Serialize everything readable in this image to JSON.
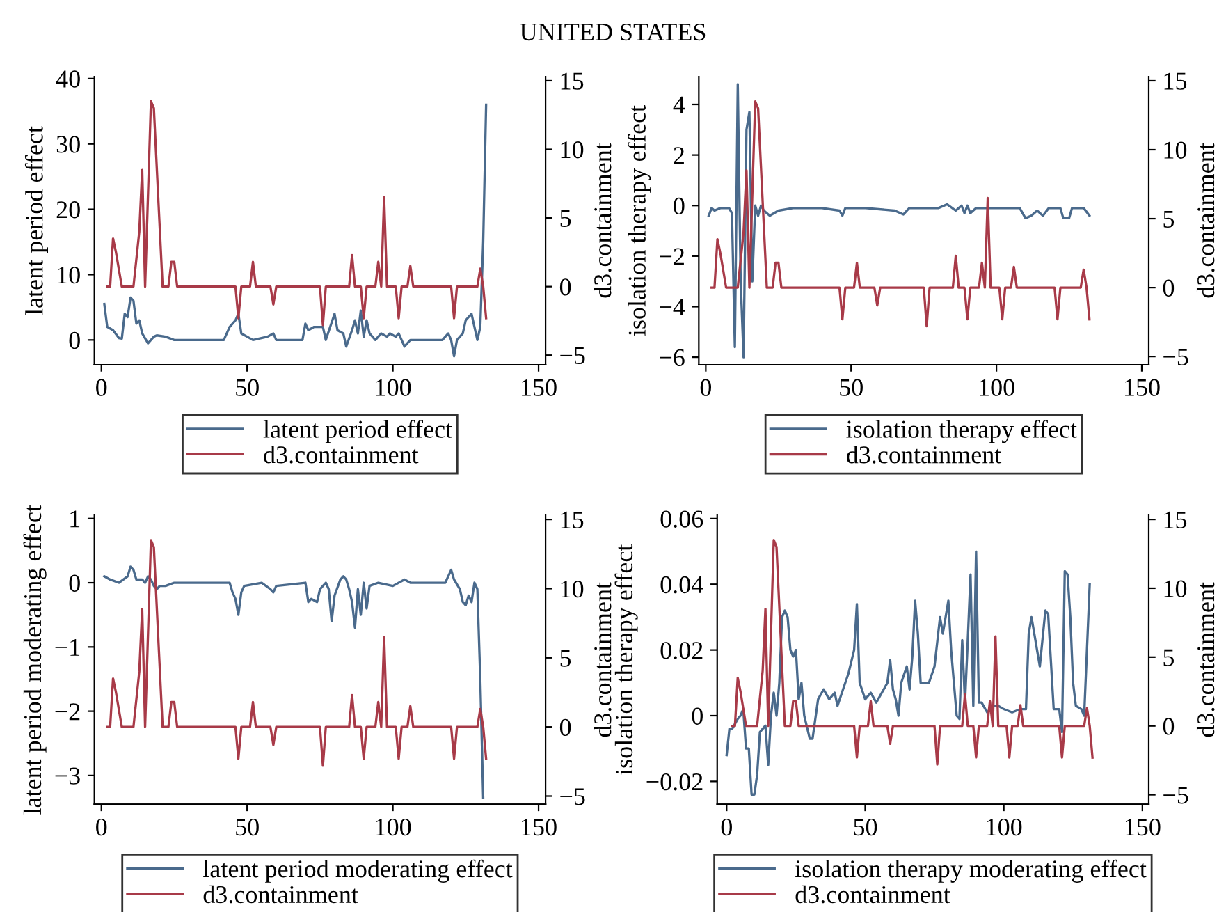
{
  "chart_data": [
    {
      "type": "line",
      "title": "UNITED STATES",
      "ylabel": "latent period effect",
      "y2label": "d3.containment",
      "xlim": [
        -2.4,
        152.4
      ],
      "xticks": [
        0,
        50,
        100,
        150
      ],
      "ylim": [
        -3.8,
        40.3
      ],
      "yticks": [
        0,
        10,
        20,
        30,
        40
      ],
      "y2lim": [
        -5.7,
        15.3
      ],
      "y2ticks": [
        -5,
        0,
        5,
        10,
        15
      ],
      "grid": false,
      "legend": "bottom",
      "series": [
        {
          "name": "latent period effect",
          "color": "#4a6a8c",
          "x": [
            1,
            2,
            4,
            6,
            7,
            8,
            9,
            10,
            11,
            12,
            13,
            14,
            16,
            18,
            19,
            22,
            25,
            42,
            44,
            46,
            47,
            48,
            50,
            52,
            57,
            59,
            60,
            69,
            70,
            71,
            73,
            76,
            77,
            80,
            81,
            83,
            84,
            86,
            87,
            88,
            89,
            90,
            91,
            92,
            94,
            96,
            98,
            99,
            101,
            102,
            104,
            106,
            117,
            119,
            120,
            121,
            122,
            124,
            125,
            126,
            127,
            128,
            129,
            130,
            131,
            132
          ],
          "values": [
            5.5,
            2,
            1.5,
            0.3,
            0.2,
            4,
            3.5,
            6.5,
            6,
            2.5,
            3,
            1,
            -0.5,
            0.5,
            0.7,
            0.5,
            0,
            0,
            2,
            3,
            4,
            1,
            0.5,
            0,
            0.5,
            1,
            0,
            0,
            2.5,
            1.5,
            2,
            2,
            0,
            4,
            1.5,
            1,
            -1,
            1.5,
            3,
            1,
            4.5,
            0.5,
            3,
            1,
            0,
            1,
            0.5,
            1,
            0.5,
            1,
            -1,
            0,
            0,
            1,
            0,
            -2.5,
            0,
            1,
            3,
            3.5,
            4,
            2,
            0,
            2,
            15,
            36
          ]
        },
        {
          "name": "d3.containment",
          "color": "#a83a48",
          "axis": "y2",
          "x": [
            2,
            3,
            4,
            5,
            7,
            11,
            13,
            14,
            15,
            17,
            18,
            21,
            23,
            24,
            25,
            26,
            46,
            47,
            48,
            51,
            52,
            53,
            58,
            59,
            60,
            75,
            76,
            77,
            85,
            86,
            87,
            89,
            90,
            91,
            94,
            95,
            96,
            97,
            98,
            101,
            102,
            103,
            105,
            106,
            107,
            120,
            121,
            122,
            129,
            130,
            131,
            132
          ],
          "values": [
            0,
            0,
            3.5,
            2.5,
            0,
            0,
            4,
            8.5,
            0,
            13.5,
            13,
            0,
            0,
            1.8,
            1.8,
            0,
            0,
            -2.3,
            0,
            0,
            1.8,
            0,
            0,
            -1.3,
            0,
            0,
            -2.8,
            0,
            0,
            2.3,
            0,
            0,
            -2.3,
            0,
            0,
            1.8,
            0,
            6.5,
            0,
            0,
            -2.3,
            0,
            0,
            1.5,
            0,
            0,
            -2.3,
            0,
            0,
            1.3,
            0,
            -2.3
          ]
        }
      ]
    },
    {
      "type": "line",
      "ylabel": "isolation therapy effect",
      "y2label": "d3.containment",
      "xlim": [
        -2.4,
        152.4
      ],
      "xticks": [
        0,
        50,
        100,
        150
      ],
      "ylim": [
        -6.3,
        5.1
      ],
      "yticks": [
        -6,
        -4,
        -2,
        0,
        2,
        4
      ],
      "y2lim": [
        -5.6,
        15.3
      ],
      "y2ticks": [
        -5,
        0,
        5,
        10,
        15
      ],
      "grid": false,
      "legend": "bottom",
      "series": [
        {
          "name": "isolation therapy effect",
          "color": "#4a6a8c",
          "x": [
            1,
            2,
            3,
            5,
            8,
            9,
            10,
            11,
            12,
            13,
            14,
            15,
            16,
            17,
            18,
            19,
            20,
            22,
            25,
            30,
            40,
            46,
            47,
            48,
            55,
            65,
            68,
            70,
            80,
            83,
            86,
            88,
            89,
            90,
            91,
            93,
            100,
            108,
            110,
            112,
            114,
            116,
            118,
            122,
            123,
            125,
            126,
            130,
            132
          ],
          "values": [
            -0.4,
            -0.1,
            -0.2,
            -0.1,
            -0.1,
            -0.3,
            -5.6,
            4.8,
            -3,
            -6,
            3,
            3.7,
            -3,
            0,
            -0.4,
            0,
            -0.2,
            -0.4,
            -0.2,
            -0.1,
            -0.1,
            -0.2,
            -0.4,
            -0.1,
            -0.1,
            -0.2,
            -0.35,
            -0.1,
            -0.1,
            0.05,
            -0.2,
            0,
            -0.3,
            0,
            -0.3,
            -0.1,
            -0.1,
            -0.1,
            -0.5,
            -0.4,
            -0.2,
            -0.4,
            -0.1,
            -0.1,
            -0.5,
            -0.5,
            -0.1,
            -0.1,
            -0.4
          ]
        },
        {
          "name": "d3.containment",
          "color": "#a83a48",
          "axis": "y2",
          "x": [
            2,
            3,
            4,
            5,
            7,
            11,
            13,
            14,
            15,
            17,
            18,
            21,
            23,
            24,
            25,
            26,
            46,
            47,
            48,
            51,
            52,
            53,
            58,
            59,
            60,
            75,
            76,
            77,
            85,
            86,
            87,
            89,
            90,
            91,
            94,
            95,
            96,
            97,
            98,
            101,
            102,
            103,
            105,
            106,
            107,
            120,
            121,
            122,
            129,
            130,
            131,
            132
          ],
          "values": [
            0,
            0,
            3.5,
            2.5,
            0,
            0,
            4,
            8.5,
            0,
            13.5,
            13,
            0,
            0,
            1.8,
            1.8,
            0,
            0,
            -2.3,
            0,
            0,
            1.8,
            0,
            0,
            -1.3,
            0,
            0,
            -2.8,
            0,
            0,
            2.3,
            0,
            0,
            -2.3,
            0,
            0,
            1.8,
            0,
            6.5,
            0,
            0,
            -2.3,
            0,
            0,
            1.5,
            0,
            0,
            -2.3,
            0,
            0,
            1.3,
            0,
            -2.3
          ]
        }
      ]
    },
    {
      "type": "line",
      "ylabel": "latent period moderating effect",
      "y2label": "d3.containment",
      "xlim": [
        -2.4,
        152.4
      ],
      "xticks": [
        0,
        50,
        100,
        150
      ],
      "ylim": [
        -3.45,
        1.05
      ],
      "yticks": [
        -3,
        -2,
        -1,
        0,
        1
      ],
      "y2lim": [
        -5.6,
        15.3
      ],
      "y2ticks": [
        -5,
        0,
        5,
        10,
        15
      ],
      "grid": false,
      "legend": "bottom",
      "series": [
        {
          "name": "latent period moderating effect",
          "color": "#4a6a8c",
          "x": [
            1,
            3,
            6,
            9,
            10,
            11,
            12,
            14,
            15,
            16,
            17,
            18,
            19,
            20,
            22,
            25,
            44,
            45,
            46,
            47,
            48,
            49,
            55,
            58,
            59,
            60,
            70,
            71,
            72,
            74,
            75,
            76,
            77,
            78,
            79,
            80,
            82,
            83,
            84,
            85,
            86,
            87,
            88,
            89,
            90,
            91,
            92,
            95,
            100,
            104,
            106,
            118,
            120,
            121,
            123,
            124,
            125,
            126,
            127,
            128,
            129,
            130,
            131
          ],
          "values": [
            0.1,
            0.05,
            0,
            0.1,
            0.25,
            0.2,
            0.05,
            0.05,
            0,
            0.1,
            0.05,
            -0.05,
            -0.1,
            -0.05,
            -0.05,
            0,
            0,
            -0.15,
            -0.25,
            -0.5,
            -0.15,
            -0.05,
            0,
            -0.1,
            -0.15,
            -0.05,
            0,
            -0.3,
            -0.25,
            -0.3,
            -0.1,
            -0.05,
            0,
            -0.1,
            -0.6,
            -0.2,
            0.05,
            0.1,
            0.05,
            -0.1,
            -0.3,
            -0.7,
            -0.1,
            -0.5,
            0,
            -0.4,
            -0.05,
            0,
            -0.05,
            0.05,
            0,
            0,
            0.2,
            0.05,
            -0.1,
            -0.3,
            -0.35,
            -0.2,
            -0.3,
            0,
            -0.1,
            -1.5,
            -3.35
          ]
        },
        {
          "name": "d3.containment",
          "color": "#a83a48",
          "axis": "y2",
          "x": [
            2,
            3,
            4,
            5,
            7,
            11,
            13,
            14,
            15,
            17,
            18,
            21,
            23,
            24,
            25,
            26,
            46,
            47,
            48,
            51,
            52,
            53,
            58,
            59,
            60,
            75,
            76,
            77,
            85,
            86,
            87,
            89,
            90,
            91,
            94,
            95,
            96,
            97,
            98,
            101,
            102,
            103,
            105,
            106,
            107,
            120,
            121,
            122,
            129,
            130,
            131,
            132
          ],
          "values": [
            0,
            0,
            3.5,
            2.5,
            0,
            0,
            4,
            8.5,
            0,
            13.5,
            13,
            0,
            0,
            1.8,
            1.8,
            0,
            0,
            -2.3,
            0,
            0,
            1.8,
            0,
            0,
            -1.3,
            0,
            0,
            -2.8,
            0,
            0,
            2.3,
            0,
            0,
            -2.3,
            0,
            0,
            1.8,
            0,
            6.5,
            0,
            0,
            -2.3,
            0,
            0,
            1.5,
            0,
            0,
            -2.3,
            0,
            0,
            1.3,
            0,
            -2.3
          ]
        }
      ]
    },
    {
      "type": "line",
      "ylabel": "isolation therapy effect",
      "y2label": "d3.containment",
      "xlim": [
        -3.4,
        152.3
      ],
      "xticks": [
        0,
        50,
        100,
        150
      ],
      "ylim": [
        -0.027,
        0.061
      ],
      "yticks": [
        -0.02,
        0,
        0.02,
        0.04,
        0.06
      ],
      "y2lim": [
        -5.7,
        15.3
      ],
      "y2ticks": [
        -5,
        0,
        5,
        10,
        15
      ],
      "grid": false,
      "legend": "bottom",
      "series": [
        {
          "name": "isolation therapy moderating effect",
          "color": "#4a6a8c",
          "x": [
            0,
            1,
            2,
            4,
            5,
            6,
            7,
            8,
            9,
            10,
            11,
            12,
            14,
            15,
            16,
            17,
            18,
            19,
            20,
            21,
            22,
            23,
            24,
            25,
            26,
            27,
            28,
            30,
            31,
            33,
            35,
            37,
            39,
            40,
            42,
            44,
            46,
            47,
            48,
            50,
            52,
            54,
            56,
            58,
            59,
            60,
            61,
            62,
            63,
            65,
            66,
            67,
            68,
            69,
            70,
            71,
            73,
            75,
            77,
            78,
            79,
            80,
            81,
            82,
            83,
            84,
            85,
            86,
            87,
            88,
            89,
            90,
            91,
            92,
            94,
            96,
            98,
            100,
            103,
            106,
            108,
            109,
            110,
            112,
            113,
            115,
            116,
            118,
            120,
            121,
            122,
            123,
            124,
            125,
            126,
            128,
            129,
            130,
            131
          ],
          "values": [
            -0.012,
            -0.004,
            -0.004,
            -0.001,
            0,
            0.002,
            -0.01,
            -0.01,
            -0.024,
            -0.024,
            -0.018,
            -0.005,
            -0.003,
            -0.015,
            0,
            0.007,
            0,
            0.01,
            0.03,
            0.032,
            0.03,
            0.02,
            0.018,
            0.02,
            0.005,
            0.01,
            0,
            -0.007,
            -0.007,
            0.005,
            0.008,
            0.005,
            0.007,
            0.003,
            0.008,
            0.013,
            0.02,
            0.034,
            0.01,
            0.005,
            0.007,
            0.004,
            0.007,
            0.01,
            0.017,
            0.008,
            0.005,
            0,
            0.01,
            0.015,
            0.008,
            0.018,
            0.035,
            0.025,
            0.01,
            0.01,
            0.01,
            0.015,
            0.03,
            0.025,
            0.03,
            0.035,
            0.02,
            0.01,
            0,
            -0.001,
            0.023,
            0.004,
            0.023,
            0.043,
            0.003,
            0.05,
            0.004,
            0.004,
            0.001,
            0.003,
            0.003,
            0.002,
            0.001,
            0.002,
            0.002,
            0.025,
            0.03,
            0.02,
            0.015,
            0.032,
            0.031,
            0.002,
            0.002,
            -0.005,
            0.044,
            0.043,
            0.03,
            0.01,
            0.003,
            0.002,
            0,
            0.02,
            0.04
          ]
        },
        {
          "name": "d3.containment",
          "color": "#a83a48",
          "axis": "y2",
          "x": [
            2,
            3,
            4,
            5,
            7,
            11,
            13,
            14,
            15,
            17,
            18,
            21,
            23,
            24,
            25,
            26,
            46,
            47,
            48,
            51,
            52,
            53,
            58,
            59,
            60,
            75,
            76,
            77,
            85,
            86,
            87,
            89,
            90,
            91,
            94,
            95,
            96,
            97,
            98,
            101,
            102,
            103,
            105,
            106,
            107,
            120,
            121,
            122,
            129,
            130,
            131,
            132
          ],
          "values": [
            0,
            0,
            3.5,
            2.5,
            0,
            0,
            4,
            8.5,
            0,
            13.5,
            13,
            0,
            0,
            1.8,
            1.8,
            0,
            0,
            -2.3,
            0,
            0,
            1.8,
            0,
            0,
            -1.3,
            0,
            0,
            -2.8,
            0,
            0,
            2.3,
            0,
            0,
            -2.3,
            0,
            0,
            1.8,
            0,
            6.5,
            0,
            0,
            -2.3,
            0,
            0,
            1.5,
            0,
            0,
            -2.3,
            0,
            0,
            1.3,
            0,
            -2.3
          ]
        }
      ]
    }
  ]
}
